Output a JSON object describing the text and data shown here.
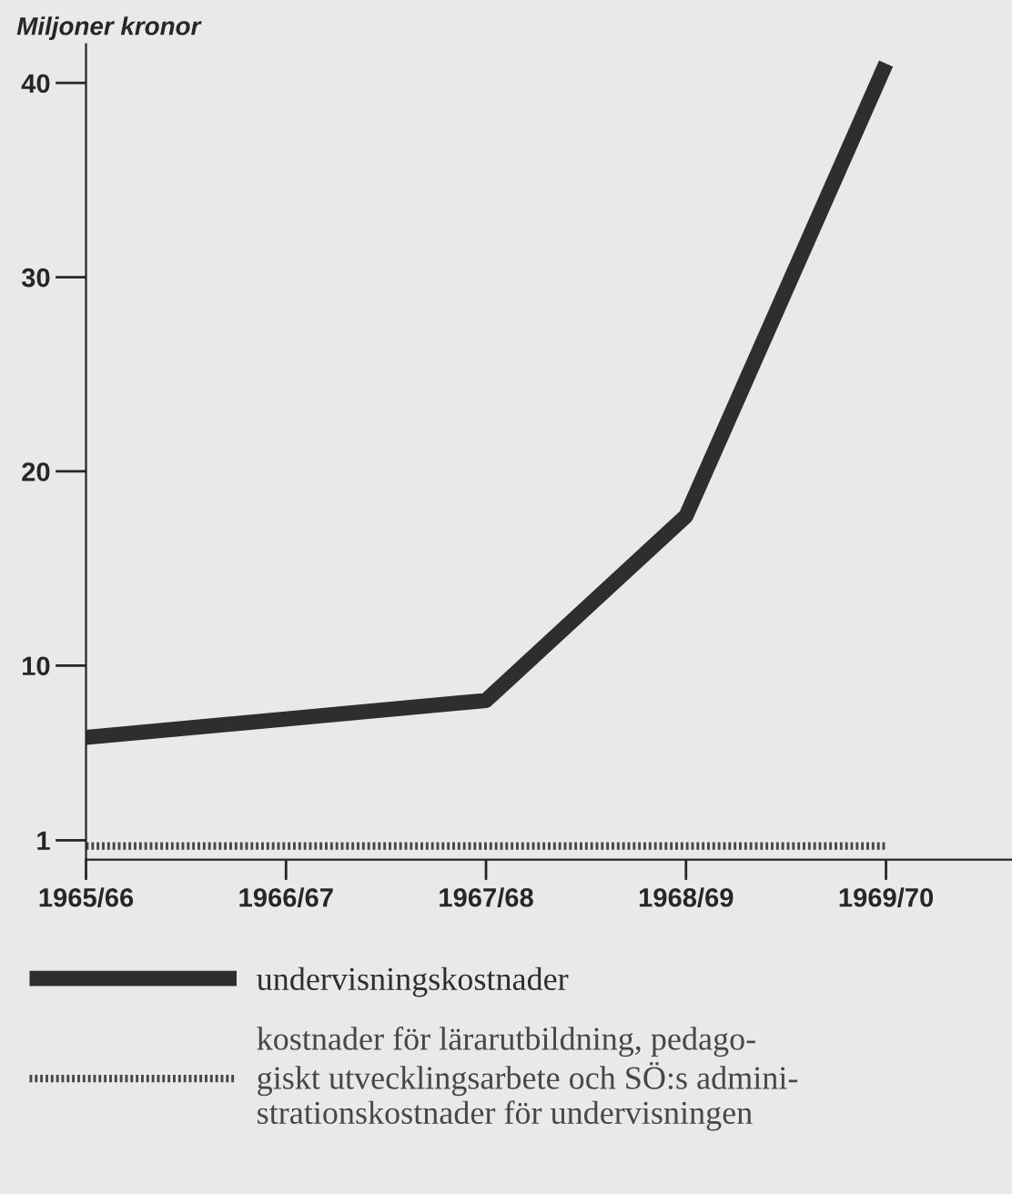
{
  "chart_data": {
    "type": "line",
    "ylabel": "Miljoner kronor",
    "categories": [
      "1965/66",
      "1966/67",
      "1967/68",
      "1968/69",
      "1969/70"
    ],
    "ylim": [
      0,
      42
    ],
    "yticks": [
      1,
      10,
      20,
      30,
      40
    ],
    "grid": false,
    "legend": "bottom",
    "marker": "none",
    "series": [
      {
        "name": "undervisningskostnader",
        "color": "#2e2e2e",
        "line_style": "solid",
        "values": [
          6.3,
          null,
          8.2,
          17.7,
          41
        ]
      },
      {
        "name": "kostnader för lärarutbildning, pedago-\ngiskt utvecklingsarbete och SÖ:s admini-\nstrationskostnader för undervisningen",
        "color": "#474747",
        "line_style": "dotted",
        "values": [
          0.7,
          0.7,
          0.7,
          0.7,
          0.7
        ]
      }
    ]
  }
}
